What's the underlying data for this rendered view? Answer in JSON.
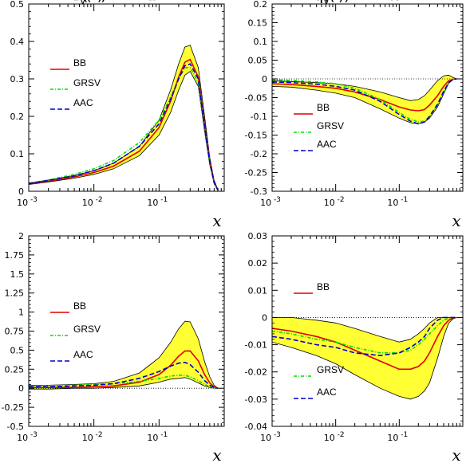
{
  "chart_data": [
    {
      "type": "line",
      "title": "xΔu_v(x) − NLO",
      "xlabel": "x",
      "ylabel": "",
      "xscale": "log",
      "xlim": [
        0.001,
        1
      ],
      "ylim": [
        0,
        0.5
      ],
      "yticks": [
        "0",
        "0.1",
        "0.2",
        "0.3",
        "0.4",
        "0.5"
      ],
      "xticks": [
        "10^-3",
        "10^-2",
        "10^-1"
      ],
      "legend_position": "left",
      "x": [
        0.001,
        0.002,
        0.005,
        0.01,
        0.02,
        0.05,
        0.1,
        0.15,
        0.2,
        0.25,
        0.3,
        0.4,
        0.5,
        0.6,
        0.7,
        0.8
      ],
      "band": {
        "lower": [
          0.018,
          0.025,
          0.035,
          0.045,
          0.06,
          0.095,
          0.15,
          0.21,
          0.27,
          0.31,
          0.32,
          0.28,
          0.16,
          0.07,
          0.02,
          0.002
        ],
        "upper": [
          0.022,
          0.03,
          0.042,
          0.055,
          0.075,
          0.12,
          0.19,
          0.27,
          0.34,
          0.385,
          0.39,
          0.33,
          0.2,
          0.09,
          0.03,
          0.004
        ]
      },
      "series": [
        {
          "name": "BB",
          "color": "#e00000",
          "dash": "solid",
          "values": [
            0.02,
            0.027,
            0.038,
            0.05,
            0.067,
            0.107,
            0.17,
            0.24,
            0.305,
            0.345,
            0.352,
            0.305,
            0.18,
            0.08,
            0.025,
            0.003
          ]
        },
        {
          "name": "GRSV",
          "color": "#00dd00",
          "dash": "dashdot",
          "values": [
            0.02,
            0.03,
            0.045,
            0.06,
            0.082,
            0.13,
            0.19,
            0.25,
            0.3,
            0.33,
            0.33,
            0.29,
            0.17,
            0.075,
            0.022,
            0.003
          ]
        },
        {
          "name": "AAC",
          "color": "#0000cc",
          "dash": "dashed",
          "values": [
            0.02,
            0.029,
            0.041,
            0.055,
            0.075,
            0.12,
            0.18,
            0.245,
            0.3,
            0.335,
            0.34,
            0.3,
            0.175,
            0.078,
            0.024,
            0.003
          ]
        }
      ]
    },
    {
      "type": "line",
      "title": "xΔd_v(x) − NLO",
      "xlabel": "x",
      "ylabel": "",
      "xscale": "log",
      "xlim": [
        0.001,
        1
      ],
      "ylim": [
        -0.3,
        0.2
      ],
      "yticks": [
        "-0.3",
        "-0.25",
        "-0.2",
        "-0.15",
        "-0.1",
        "-0.05",
        "0",
        "0.05",
        "0.1",
        "0.15",
        "0.2"
      ],
      "xticks": [
        "10^-3",
        "10^-2",
        "10^-1"
      ],
      "legend_position": "left",
      "x": [
        0.001,
        0.002,
        0.005,
        0.01,
        0.02,
        0.05,
        0.1,
        0.15,
        0.2,
        0.25,
        0.3,
        0.4,
        0.5,
        0.6,
        0.7,
        0.8
      ],
      "band": {
        "lower": [
          -0.02,
          -0.022,
          -0.03,
          -0.038,
          -0.05,
          -0.08,
          -0.105,
          -0.117,
          -0.12,
          -0.115,
          -0.105,
          -0.075,
          -0.04,
          -0.012,
          -0.002,
          0
        ],
        "upper": [
          -0.005,
          -0.007,
          -0.01,
          -0.013,
          -0.02,
          -0.035,
          -0.05,
          -0.058,
          -0.055,
          -0.045,
          -0.03,
          -0.005,
          0.008,
          0.01,
          0.004,
          0
        ]
      },
      "series": [
        {
          "name": "BB",
          "color": "#e00000",
          "dash": "solid",
          "values": [
            -0.013,
            -0.015,
            -0.02,
            -0.025,
            -0.035,
            -0.055,
            -0.075,
            -0.083,
            -0.085,
            -0.082,
            -0.07,
            -0.045,
            -0.02,
            -0.005,
            -0.001,
            0
          ]
        },
        {
          "name": "GRSV",
          "color": "#00dd00",
          "dash": "dashdot",
          "values": [
            -0.002,
            -0.004,
            -0.008,
            -0.013,
            -0.025,
            -0.055,
            -0.09,
            -0.108,
            -0.115,
            -0.113,
            -0.1,
            -0.07,
            -0.035,
            -0.01,
            -0.002,
            0
          ]
        },
        {
          "name": "AAC",
          "color": "#0000cc",
          "dash": "dashed",
          "values": [
            -0.008,
            -0.01,
            -0.014,
            -0.02,
            -0.03,
            -0.06,
            -0.095,
            -0.113,
            -0.12,
            -0.115,
            -0.1,
            -0.068,
            -0.033,
            -0.01,
            -0.002,
            0
          ]
        }
      ]
    },
    {
      "type": "line",
      "title": "xΔG(x) − NLO",
      "xlabel": "x",
      "ylabel": "",
      "xscale": "log",
      "xlim": [
        0.001,
        1
      ],
      "ylim": [
        -0.5,
        2
      ],
      "yticks": [
        "-0.5",
        "-0.25",
        "0",
        "0.25",
        "0.5",
        "0.75",
        "1",
        "1.25",
        "1.5",
        "1.75",
        "2"
      ],
      "xticks": [
        "10^-3",
        "10^-2",
        "10^-1"
      ],
      "legend_position": "left",
      "x": [
        0.001,
        0.002,
        0.005,
        0.01,
        0.02,
        0.05,
        0.1,
        0.15,
        0.2,
        0.25,
        0.3,
        0.4,
        0.5,
        0.6,
        0.7,
        0.8
      ],
      "band": {
        "lower": [
          -0.01,
          -0.01,
          0,
          0,
          0.01,
          0.03,
          0.08,
          0.12,
          0.13,
          0.14,
          0.12,
          0.07,
          0.03,
          0.01,
          0,
          0
        ],
        "upper": [
          0.04,
          0.04,
          0.05,
          0.06,
          0.09,
          0.2,
          0.4,
          0.6,
          0.78,
          0.88,
          0.87,
          0.65,
          0.35,
          0.15,
          0.04,
          0
        ]
      },
      "series": [
        {
          "name": "BB",
          "color": "#e00000",
          "dash": "solid",
          "values": [
            0.01,
            0.01,
            0.01,
            0.02,
            0.03,
            0.08,
            0.18,
            0.3,
            0.42,
            0.49,
            0.49,
            0.36,
            0.18,
            0.07,
            0.02,
            0
          ]
        },
        {
          "name": "GRSV",
          "color": "#00dd00",
          "dash": "dashdot",
          "values": [
            0.03,
            0.035,
            0.04,
            0.05,
            0.06,
            0.09,
            0.13,
            0.16,
            0.17,
            0.17,
            0.15,
            0.1,
            0.05,
            0.02,
            0.005,
            0
          ]
        },
        {
          "name": "AAC",
          "color": "#0000cc",
          "dash": "dashed",
          "values": [
            0.02,
            0.02,
            0.03,
            0.04,
            0.06,
            0.13,
            0.22,
            0.29,
            0.33,
            0.34,
            0.31,
            0.21,
            0.1,
            0.04,
            0.01,
            0
          ]
        }
      ]
    },
    {
      "type": "line",
      "title": "xΔq̄(x) − NLO",
      "xlabel": "x",
      "ylabel": "",
      "xscale": "log",
      "xlim": [
        0.001,
        1
      ],
      "ylim": [
        -0.04,
        0.03
      ],
      "yticks": [
        "-0.04",
        "-0.03",
        "-0.02",
        "-0.01",
        "0",
        "0.01",
        "0.02",
        "0.03"
      ],
      "xticks": [
        "10^-3",
        "10^-2",
        "10^-1"
      ],
      "legend_position": "left",
      "x": [
        0.001,
        0.002,
        0.005,
        0.01,
        0.02,
        0.05,
        0.1,
        0.15,
        0.2,
        0.25,
        0.3,
        0.4,
        0.5,
        0.6,
        0.7,
        0.8
      ],
      "band": {
        "lower": [
          -0.009,
          -0.011,
          -0.014,
          -0.017,
          -0.021,
          -0.026,
          -0.029,
          -0.03,
          -0.029,
          -0.027,
          -0.024,
          -0.015,
          -0.007,
          -0.002,
          -0.0005,
          0
        ],
        "upper": [
          0,
          0,
          -0.001,
          -0.002,
          -0.004,
          -0.007,
          -0.009,
          -0.008,
          -0.006,
          -0.004,
          -0.002,
          0,
          0,
          0,
          0,
          0
        ]
      },
      "series": [
        {
          "name": "BB",
          "color": "#e00000",
          "dash": "solid",
          "values": [
            -0.004,
            -0.005,
            -0.007,
            -0.009,
            -0.012,
            -0.016,
            -0.019,
            -0.019,
            -0.018,
            -0.016,
            -0.013,
            -0.007,
            -0.003,
            -0.001,
            -0.0002,
            0
          ]
        },
        {
          "name": "GRSV",
          "color": "#00dd00",
          "dash": "dashdot",
          "values": [
            -0.005,
            -0.006,
            -0.008,
            -0.009,
            -0.011,
            -0.013,
            -0.013,
            -0.012,
            -0.01,
            -0.008,
            -0.006,
            -0.003,
            -0.001,
            -0.0003,
            0,
            0
          ]
        },
        {
          "name": "AAC",
          "color": "#0000cc",
          "dash": "dashed",
          "values": [
            -0.007,
            -0.008,
            -0.01,
            -0.011,
            -0.013,
            -0.014,
            -0.013,
            -0.011,
            -0.009,
            -0.007,
            -0.004,
            -0.001,
            0,
            0,
            0,
            0
          ]
        }
      ]
    }
  ],
  "colors": {
    "band_fill": "#ffff33",
    "band_edge": "#000000",
    "zero_line": "#000000"
  }
}
